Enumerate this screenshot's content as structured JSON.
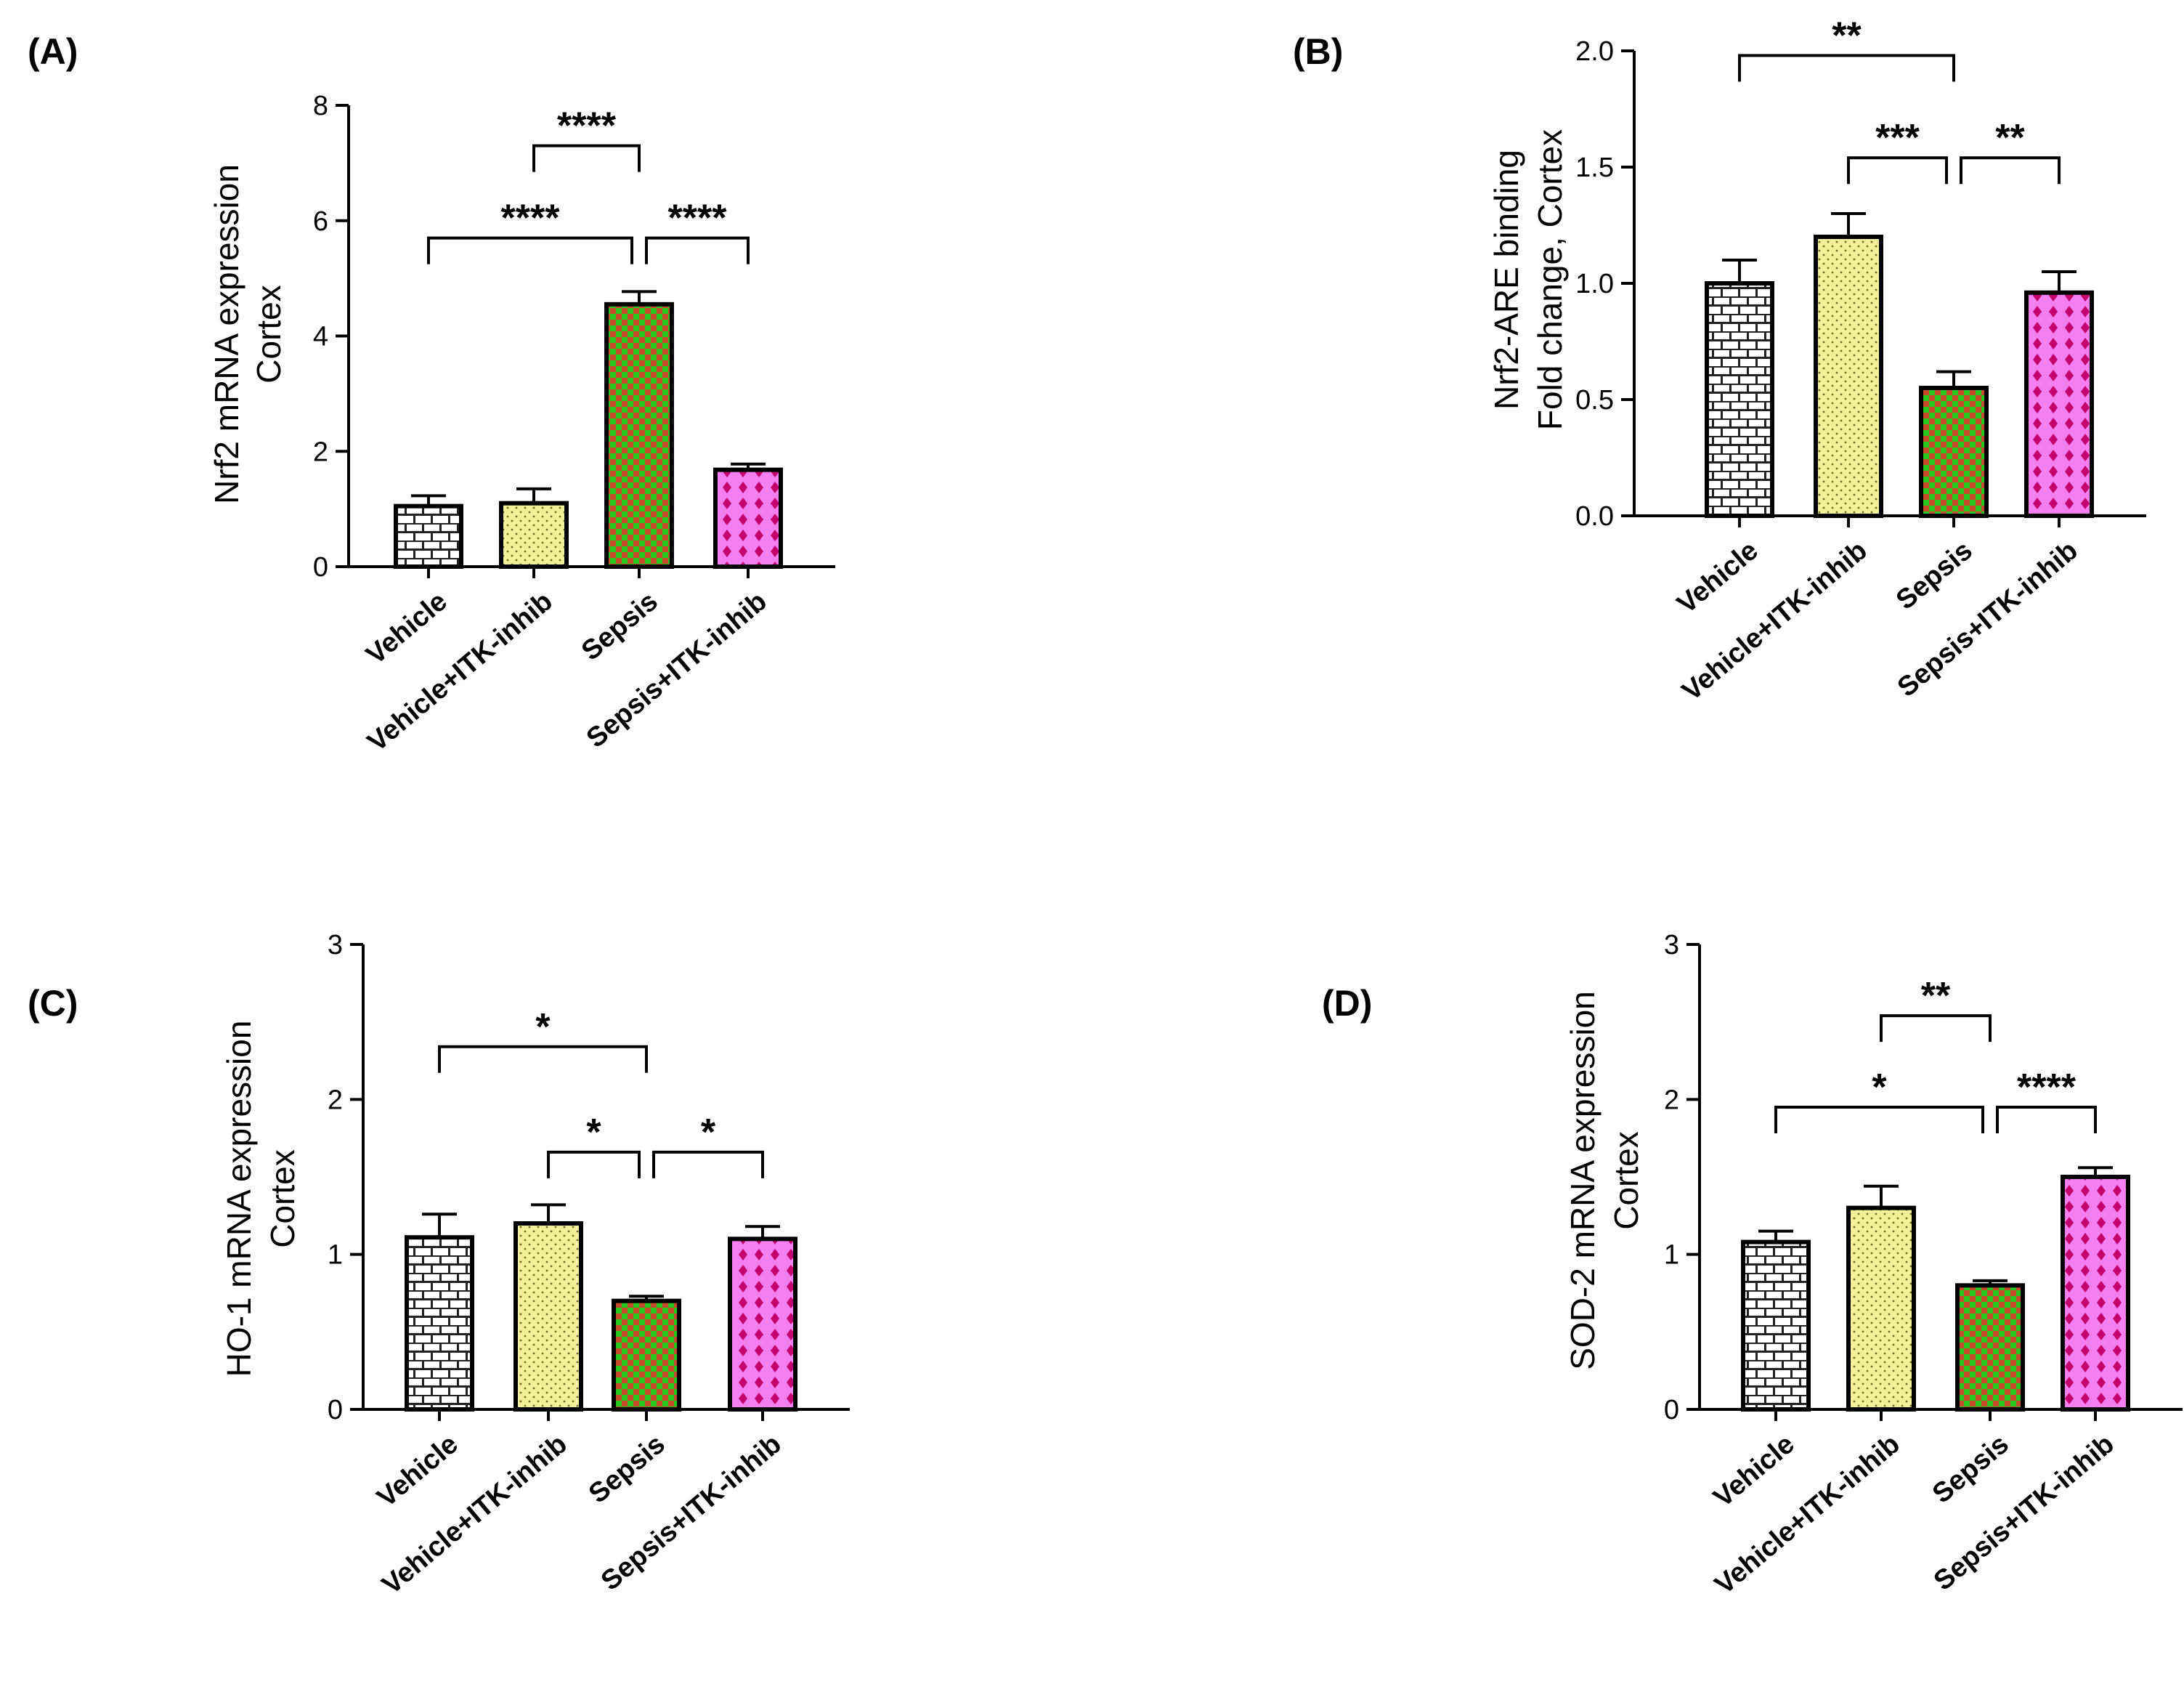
{
  "categories": [
    "Vehicle",
    "Vehicle+ITK-inhib",
    "Sepsis",
    "Sepsis+ITK-inhib"
  ],
  "group_colors": {
    "vehicle": "#ffffff",
    "vehicle_itk": "#f3f097",
    "sepsis": "#25c81e",
    "sepsis_itk": "#f47ff0"
  },
  "chart_data": [
    {
      "type": "bar",
      "panel": "(A)",
      "ylabel": [
        "Nrf2 mRNA expression",
        "Cortex"
      ],
      "categories": [
        "Vehicle",
        "Vehicle+ITK-inhib",
        "Sepsis",
        "Sepsis+ITK-inhib"
      ],
      "values": [
        1.05,
        1.1,
        4.55,
        1.68
      ],
      "errors": [
        0.18,
        0.25,
        0.22,
        0.1
      ],
      "ylim": [
        0,
        8
      ],
      "yticks": [
        0,
        2,
        4,
        6,
        8
      ],
      "tick_labels": [
        "0",
        "2",
        "4",
        "6",
        "8"
      ],
      "significance": [
        {
          "from": 1,
          "to": 2,
          "label": "****",
          "y": 7.3
        },
        {
          "from": 0,
          "to": 2,
          "label": "****",
          "y": 5.7
        },
        {
          "from": 2,
          "to": 3,
          "label": "****",
          "y": 5.7
        }
      ]
    },
    {
      "type": "bar",
      "panel": "(B)",
      "ylabel": [
        "Nrf2-ARE binding",
        "Fold change,  Cortex"
      ],
      "categories": [
        "Vehicle",
        "Vehicle+ITK-inhib",
        "Sepsis",
        "Sepsis+ITK-inhib"
      ],
      "values": [
        1.0,
        1.2,
        0.55,
        0.96
      ],
      "errors": [
        0.1,
        0.1,
        0.07,
        0.09
      ],
      "ylim": [
        0,
        2.0
      ],
      "yticks": [
        0,
        0.5,
        1.0,
        1.5,
        2.0
      ],
      "tick_labels": [
        "0.0",
        "0.5",
        "1.0",
        "1.5",
        "2.0"
      ],
      "significance": [
        {
          "from": 0,
          "to": 2,
          "label": "**",
          "y": 1.98
        },
        {
          "from": 1,
          "to": 2,
          "label": "***",
          "y": 1.54
        },
        {
          "from": 2,
          "to": 3,
          "label": "**",
          "y": 1.54
        }
      ]
    },
    {
      "type": "bar",
      "panel": "(C)",
      "ylabel": [
        "HO-1 mRNA expression",
        "Cortex"
      ],
      "categories": [
        "Vehicle",
        "Vehicle+ITK-inhib",
        "Sepsis",
        "Sepsis+ITK-inhib"
      ],
      "values": [
        1.11,
        1.2,
        0.7,
        1.1
      ],
      "errors": [
        0.15,
        0.12,
        0.03,
        0.08
      ],
      "ylim": [
        0,
        3
      ],
      "yticks": [
        0,
        1,
        2,
        3
      ],
      "tick_labels": [
        "0",
        "1",
        "2",
        "3"
      ],
      "significance": [
        {
          "from": 0,
          "to": 2,
          "label": "*",
          "y": 2.34
        },
        {
          "from": 1,
          "to": 2,
          "label": "*",
          "y": 1.66
        },
        {
          "from": 2,
          "to": 3,
          "label": "*",
          "y": 1.66
        }
      ]
    },
    {
      "type": "bar",
      "panel": "(D)",
      "ylabel": [
        "SOD-2 mRNA expression",
        "Cortex"
      ],
      "categories": [
        "Vehicle",
        "Vehicle+ITK-inhib",
        "Sepsis",
        "Sepsis+ITK-inhib"
      ],
      "values": [
        1.08,
        1.3,
        0.8,
        1.5
      ],
      "errors": [
        0.07,
        0.14,
        0.03,
        0.06
      ],
      "ylim": [
        0,
        3
      ],
      "yticks": [
        0,
        1,
        2,
        3
      ],
      "tick_labels": [
        "0",
        "1",
        "2",
        "3"
      ],
      "significance": [
        {
          "from": 1,
          "to": 2,
          "label": "**",
          "y": 2.54
        },
        {
          "from": 0,
          "to": 2,
          "label": "*",
          "y": 1.95
        },
        {
          "from": 2,
          "to": 3,
          "label": "****",
          "y": 1.95
        }
      ]
    }
  ]
}
